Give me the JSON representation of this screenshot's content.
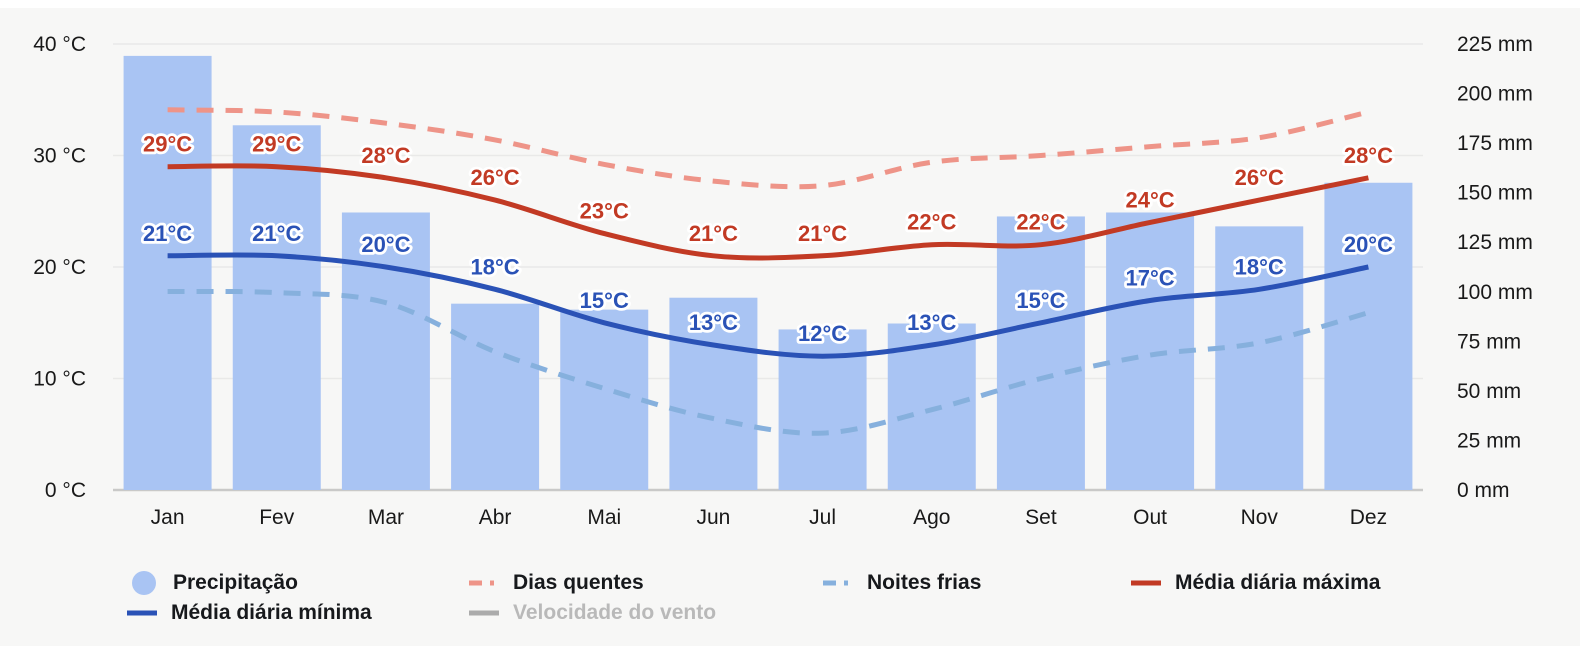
{
  "chart_data": {
    "type": "bar+line climate chart",
    "categories": [
      "Jan",
      "Fev",
      "Mar",
      "Abr",
      "Mai",
      "Jun",
      "Jul",
      "Ago",
      "Set",
      "Out",
      "Nov",
      "Dez"
    ],
    "series": [
      {
        "name": "Precipitação",
        "type": "bar",
        "axis": "right",
        "unit": "mm",
        "color": "#a9c4f3",
        "values": [
          219,
          184,
          140,
          94,
          91,
          97,
          81,
          84,
          138,
          140,
          133,
          155
        ]
      },
      {
        "name": "Dias quentes",
        "type": "line",
        "style": "dashed",
        "axis": "left",
        "unit": "°C",
        "color": "#ee9488",
        "values": [
          34.1,
          33.9,
          32.9,
          31.4,
          29.2,
          27.7,
          27.3,
          29.4,
          30.0,
          30.8,
          31.6,
          33.9
        ],
        "point_labels": []
      },
      {
        "name": "Noites frias",
        "type": "line",
        "style": "dashed",
        "axis": "left",
        "unit": "°C",
        "color": "#86b0dd",
        "values": [
          17.8,
          17.7,
          16.8,
          12.4,
          9.1,
          6.4,
          5.1,
          7.2,
          10.0,
          12.1,
          13.2,
          15.9
        ],
        "point_labels": []
      },
      {
        "name": "Média diária máxima",
        "type": "line",
        "style": "solid",
        "axis": "left",
        "unit": "°C",
        "color": "#c23a24",
        "values": [
          29,
          29,
          28,
          26,
          23,
          21,
          21,
          22,
          22,
          24,
          26,
          28
        ],
        "point_labels": [
          "29°C",
          "29°C",
          "28°C",
          "26°C",
          "23°C",
          "21°C",
          "21°C",
          "22°C",
          "22°C",
          "24°C",
          "26°C",
          "28°C"
        ]
      },
      {
        "name": "Média diária mínima",
        "type": "line",
        "style": "solid",
        "axis": "left",
        "unit": "°C",
        "color": "#2a52b6",
        "values": [
          21,
          21,
          20,
          18,
          15,
          13,
          12,
          13,
          15,
          17,
          18,
          20
        ],
        "point_labels": [
          "21°C",
          "21°C",
          "20°C",
          "18°C",
          "15°C",
          "13°C",
          "12°C",
          "13°C",
          "15°C",
          "17°C",
          "18°C",
          "20°C"
        ]
      },
      {
        "name": "Velocidade do vento",
        "type": "line",
        "style": "solid",
        "axis": "left",
        "color": "#ababab",
        "hidden": true,
        "values": []
      }
    ],
    "left_axis": {
      "unit": "°C",
      "min": 0,
      "max": 40,
      "ticks": [
        {
          "value": 40,
          "label": "40 °C"
        },
        {
          "value": 30,
          "label": "30 °C"
        },
        {
          "value": 20,
          "label": "20 °C"
        },
        {
          "value": 10,
          "label": "10 °C"
        },
        {
          "value": 0,
          "label": "0 °C"
        }
      ]
    },
    "right_axis": {
      "unit": "mm",
      "min": 0,
      "max": 225,
      "ticks": [
        {
          "value": 225,
          "label": "225 mm"
        },
        {
          "value": 200,
          "label": "200 mm"
        },
        {
          "value": 175,
          "label": "175 mm"
        },
        {
          "value": 150,
          "label": "150 mm"
        },
        {
          "value": 125,
          "label": "125 mm"
        },
        {
          "value": 100,
          "label": "100 mm"
        },
        {
          "value": 75,
          "label": "75 mm"
        },
        {
          "value": 50,
          "label": "50 mm"
        },
        {
          "value": 25,
          "label": "25 mm"
        },
        {
          "value": 0,
          "label": "0 mm"
        }
      ]
    },
    "grid": "horizontal lines at left-axis ticks only",
    "legend_position": "bottom"
  },
  "legend": {
    "items": [
      {
        "label": "Precipitação",
        "marker": "circle",
        "color": "#a9c4f3",
        "muted": false
      },
      {
        "label": "Dias quentes",
        "marker": "dashed-line",
        "color": "#ee9488",
        "muted": false
      },
      {
        "label": "Noites frias",
        "marker": "dashed-line",
        "color": "#86b0dd",
        "muted": false
      },
      {
        "label": "Média diária máxima",
        "marker": "line",
        "color": "#c23a24",
        "muted": false
      },
      {
        "label": "Média diária mínima",
        "marker": "line",
        "color": "#2a52b6",
        "muted": false
      },
      {
        "label": "Velocidade do vento",
        "marker": "line",
        "color": "#ababab",
        "muted": true
      }
    ]
  },
  "colors": {
    "panel_background": "#f7f7f6",
    "page_background": "#ffffff",
    "gridline": "#e9e9e8",
    "baseline": "#c9c9c8",
    "axis_text": "#191919"
  }
}
